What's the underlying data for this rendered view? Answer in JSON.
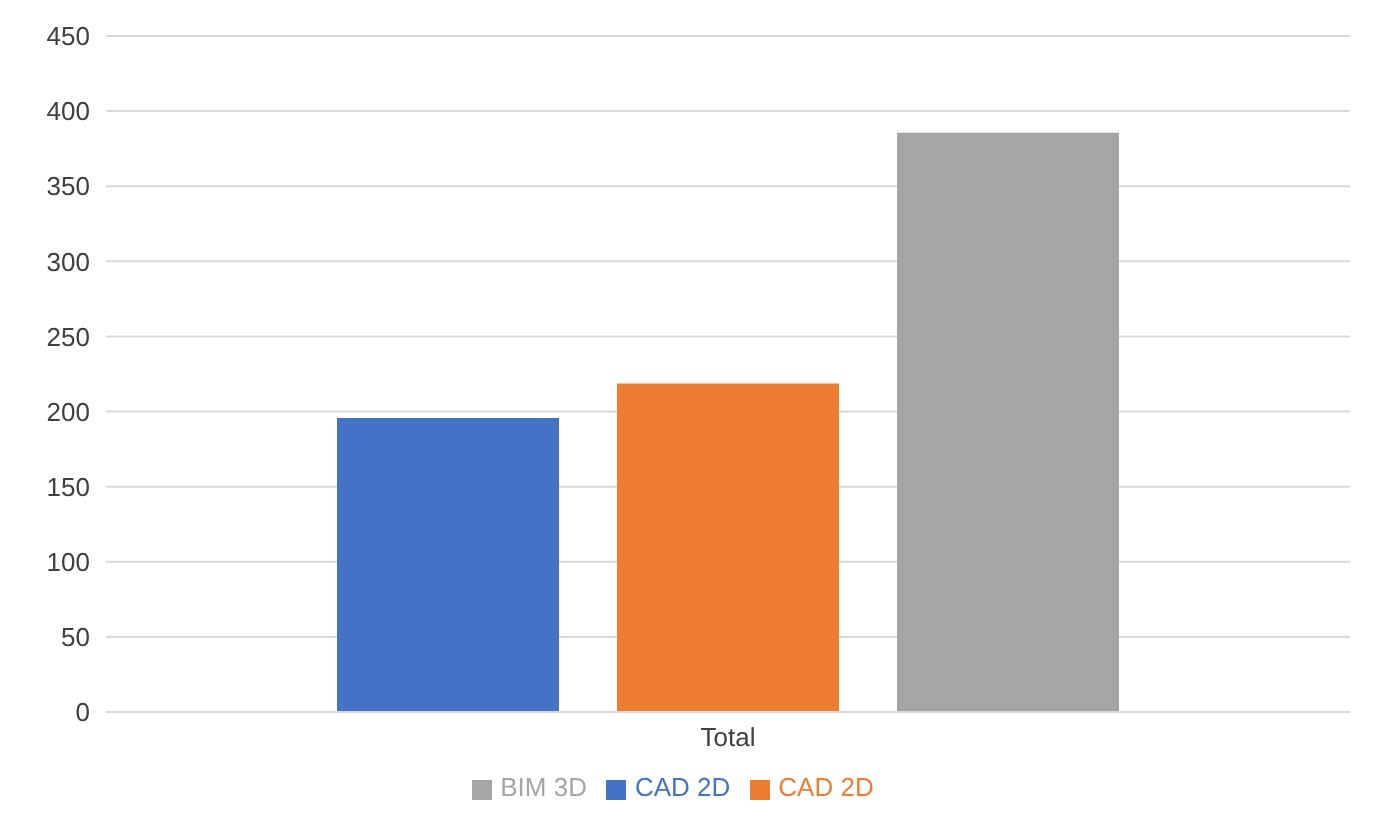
{
  "chart_data": {
    "type": "bar",
    "categories": [
      "Total"
    ],
    "series": [
      {
        "name": "CAD 2D",
        "color": "#4472c4",
        "values": [
          195
        ]
      },
      {
        "name": "CAD 2D",
        "color": "#ed7d31",
        "values": [
          218
        ]
      },
      {
        "name": "BIM 3D",
        "color": "#a5a5a5",
        "values": [
          385
        ]
      }
    ],
    "ylim": [
      0,
      450
    ],
    "yticks": [
      0,
      50,
      100,
      150,
      200,
      250,
      300,
      350,
      400,
      450
    ],
    "grid": "y",
    "legend": "bottom"
  }
}
